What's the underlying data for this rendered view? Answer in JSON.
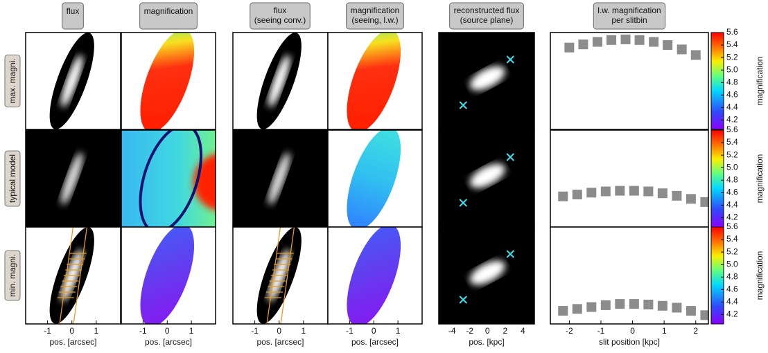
{
  "columns": [
    {
      "title": [
        "flux"
      ]
    },
    {
      "title": [
        "magnification"
      ]
    },
    {
      "title": [
        "flux",
        "(seeing conv.)"
      ]
    },
    {
      "title": [
        "magnification",
        "(seeing, l.w.)"
      ]
    },
    {
      "title": [
        "reconstructed flux",
        "(source plane)"
      ]
    },
    {
      "title": [
        "l.w. magnification",
        "per slitbin"
      ]
    }
  ],
  "rows": [
    "max. magni.",
    "typical model",
    "min. magni."
  ],
  "image_axes": [
    {
      "xlabel": "pos. [arcsec]",
      "xlim": [
        -1.9,
        2.0
      ],
      "xticks": [
        -1,
        0,
        1
      ]
    },
    {
      "xlabel": "pos. [arcsec]",
      "xlim": [
        -1.9,
        2.0
      ],
      "xticks": [
        -1,
        0,
        1
      ]
    },
    {
      "xlabel": "pos. [arcsec]",
      "xlim": [
        -1.9,
        2.0
      ],
      "xticks": [
        -1,
        0,
        1
      ]
    },
    {
      "xlabel": "pos. [arcsec]",
      "xlim": [
        -1.9,
        2.0
      ],
      "xticks": [
        -1,
        0,
        1
      ]
    },
    {
      "xlabel": "pos. [kpc]",
      "xlim": [
        -5.5,
        5.3
      ],
      "xticks": [
        -4,
        -2,
        0,
        2,
        4
      ]
    }
  ],
  "chart_data": [
    {
      "type": "scatter",
      "color": "#8c8c8c",
      "ylabel": "magnification",
      "x": [
        -2.0,
        -1.56,
        -1.11,
        -0.67,
        -0.22,
        0.22,
        0.67,
        1.11,
        1.56,
        2.0
      ],
      "values": [
        5.36,
        5.41,
        5.45,
        5.48,
        5.49,
        5.48,
        5.45,
        5.4,
        5.33,
        5.24
      ],
      "xlim": [
        -2.6,
        2.4
      ],
      "ylim": [
        4.05,
        5.6
      ],
      "yticks": [
        4.2,
        4.4,
        4.6,
        4.8,
        {
          "value": 5,
          "label": "5.0"
        },
        5.2,
        5.4,
        5.6
      ]
    },
    {
      "type": "scatter",
      "color": "#8c8c8c",
      "ylabel": "magnification",
      "x": [
        -2.2,
        -1.75,
        -1.3,
        -0.85,
        -0.4,
        0.05,
        0.5,
        0.95,
        1.4,
        1.85,
        2.3
      ],
      "values": [
        4.54,
        4.57,
        4.6,
        4.62,
        4.63,
        4.63,
        4.62,
        4.59,
        4.55,
        4.5,
        4.45
      ],
      "xlim": [
        -2.6,
        2.4
      ],
      "ylim": [
        4.05,
        5.6
      ],
      "yticks": [
        4.2,
        4.4,
        4.6,
        4.8,
        {
          "value": 5,
          "label": "5.0"
        },
        5.2,
        5.4,
        5.6
      ]
    },
    {
      "type": "scatter",
      "color": "#8c8c8c",
      "ylabel": "magnification",
      "xlabel": "slit position [kpc]",
      "x": [
        -2.2,
        -1.75,
        -1.3,
        -0.85,
        -0.4,
        0.05,
        0.5,
        0.95,
        1.4,
        1.85,
        2.3
      ],
      "values": [
        4.26,
        4.29,
        4.32,
        4.35,
        4.37,
        4.37,
        4.36,
        4.34,
        4.31,
        4.26,
        4.19
      ],
      "xlim": [
        -2.6,
        2.4
      ],
      "ylim": [
        4.05,
        5.6
      ],
      "xticks": [
        -2,
        -1,
        0,
        1,
        2
      ],
      "yticks": [
        4.2,
        4.4,
        4.6,
        4.8,
        {
          "value": 5,
          "label": "5.0"
        },
        5.2,
        5.4,
        5.6
      ]
    }
  ]
}
